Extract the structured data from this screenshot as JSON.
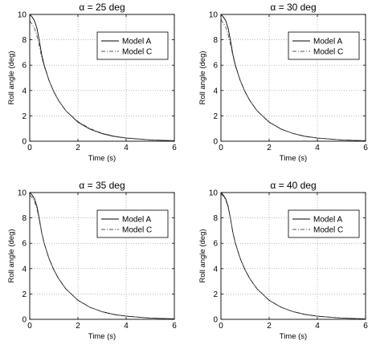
{
  "chart_data": [
    {
      "type": "line",
      "title": "α = 25 deg",
      "xlabel": "Time (s)",
      "ylabel": "Roll angle (deg)",
      "xlim": [
        0,
        6
      ],
      "ylim": [
        0,
        10
      ],
      "xticks": [
        0,
        2,
        4,
        6
      ],
      "yticks": [
        0,
        2,
        4,
        6,
        8,
        10
      ],
      "grid": true,
      "legend_position": "top-right",
      "x": [
        0,
        0.1,
        0.2,
        0.3,
        0.4,
        0.5,
        0.6,
        0.8,
        1.0,
        1.2,
        1.5,
        2.0,
        2.5,
        3.0,
        3.5,
        4.0,
        5.0,
        6.0
      ],
      "series": [
        {
          "name": "Model A",
          "style": "solid",
          "values": [
            10,
            9.8,
            9.5,
            8.9,
            7.9,
            6.8,
            6.0,
            4.8,
            3.9,
            3.2,
            2.4,
            1.5,
            0.95,
            0.6,
            0.38,
            0.25,
            0.1,
            0.04
          ]
        },
        {
          "name": "Model C",
          "style": "dashdot",
          "values": [
            9.5,
            9.2,
            8.9,
            8.3,
            7.5,
            6.6,
            5.9,
            4.8,
            3.9,
            3.2,
            2.4,
            1.55,
            1.0,
            0.63,
            0.4,
            0.26,
            0.11,
            0.05
          ]
        }
      ]
    },
    {
      "type": "line",
      "title": "α = 30 deg",
      "xlabel": "Time (s)",
      "ylabel": "Roll angle (deg)",
      "xlim": [
        0,
        6
      ],
      "ylim": [
        0,
        10
      ],
      "xticks": [
        0,
        2,
        4,
        6
      ],
      "yticks": [
        0,
        2,
        4,
        6,
        8,
        10
      ],
      "grid": true,
      "legend_position": "top-right",
      "x": [
        0,
        0.1,
        0.2,
        0.3,
        0.4,
        0.5,
        0.6,
        0.8,
        1.0,
        1.2,
        1.5,
        2.0,
        2.5,
        3.0,
        3.5,
        4.0,
        5.0,
        6.0
      ],
      "series": [
        {
          "name": "Model A",
          "style": "solid",
          "values": [
            10,
            9.8,
            9.5,
            8.9,
            7.9,
            6.8,
            6.0,
            4.8,
            3.9,
            3.2,
            2.4,
            1.5,
            0.95,
            0.6,
            0.38,
            0.25,
            0.1,
            0.04
          ]
        },
        {
          "name": "Model C",
          "style": "dashdot",
          "values": [
            9.6,
            9.3,
            9.0,
            8.4,
            7.6,
            6.7,
            5.9,
            4.8,
            3.9,
            3.2,
            2.4,
            1.52,
            0.97,
            0.61,
            0.39,
            0.25,
            0.1,
            0.04
          ]
        }
      ]
    },
    {
      "type": "line",
      "title": "α = 35 deg",
      "xlabel": "Time (s)",
      "ylabel": "Roll angle (deg)",
      "xlim": [
        0,
        6
      ],
      "ylim": [
        0,
        10
      ],
      "xticks": [
        0,
        2,
        4,
        6
      ],
      "yticks": [
        0,
        2,
        4,
        6,
        8,
        10
      ],
      "grid": true,
      "legend_position": "top-right",
      "x": [
        0,
        0.1,
        0.2,
        0.3,
        0.4,
        0.5,
        0.6,
        0.8,
        1.0,
        1.2,
        1.5,
        2.0,
        2.5,
        3.0,
        3.5,
        4.0,
        5.0,
        6.0
      ],
      "series": [
        {
          "name": "Model A",
          "style": "solid",
          "values": [
            10,
            9.8,
            9.5,
            8.9,
            7.9,
            6.8,
            6.0,
            4.8,
            3.9,
            3.2,
            2.4,
            1.5,
            0.95,
            0.6,
            0.38,
            0.25,
            0.1,
            0.04
          ]
        },
        {
          "name": "Model C",
          "style": "dashdot",
          "values": [
            9.8,
            9.6,
            9.3,
            8.7,
            7.8,
            6.8,
            6.0,
            4.8,
            3.9,
            3.2,
            2.4,
            1.5,
            0.95,
            0.6,
            0.38,
            0.25,
            0.1,
            0.04
          ]
        }
      ]
    },
    {
      "type": "line",
      "title": "α = 40 deg",
      "xlabel": "Time (s)",
      "ylabel": "Roll angle (deg)",
      "xlim": [
        0,
        6
      ],
      "ylim": [
        0,
        10
      ],
      "xticks": [
        0,
        2,
        4,
        6
      ],
      "yticks": [
        0,
        2,
        4,
        6,
        8,
        10
      ],
      "grid": true,
      "legend_position": "top-right",
      "x": [
        0,
        0.1,
        0.2,
        0.3,
        0.4,
        0.5,
        0.6,
        0.8,
        1.0,
        1.2,
        1.5,
        2.0,
        2.5,
        3.0,
        3.5,
        4.0,
        5.0,
        6.0
      ],
      "series": [
        {
          "name": "Model A",
          "style": "solid",
          "values": [
            10,
            9.8,
            9.5,
            8.9,
            7.9,
            6.8,
            6.0,
            4.8,
            3.9,
            3.2,
            2.4,
            1.5,
            0.95,
            0.6,
            0.38,
            0.25,
            0.1,
            0.04
          ]
        },
        {
          "name": "Model C",
          "style": "dashdot",
          "values": [
            9.9,
            9.7,
            9.4,
            8.8,
            7.9,
            6.8,
            6.0,
            4.8,
            3.9,
            3.2,
            2.4,
            1.5,
            0.95,
            0.6,
            0.38,
            0.25,
            0.1,
            0.04
          ]
        }
      ]
    }
  ]
}
